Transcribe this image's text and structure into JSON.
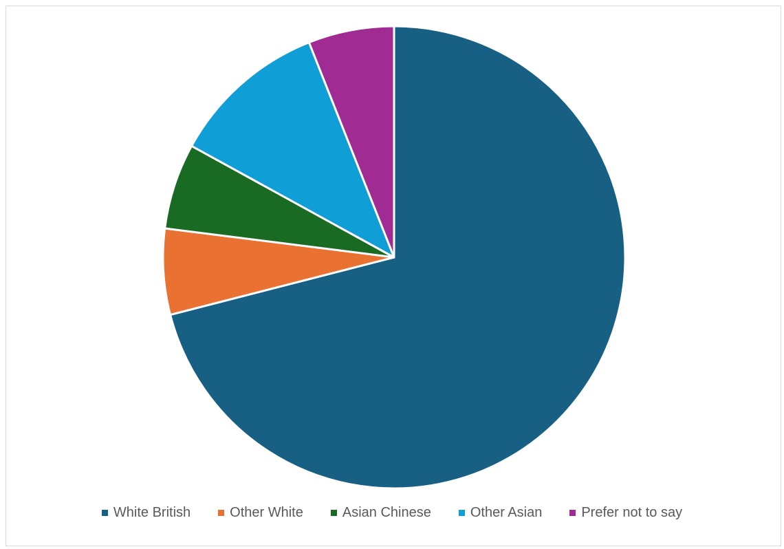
{
  "chart_data": {
    "type": "pie",
    "title": "",
    "legend_position": "bottom",
    "start_angle_deg": 0,
    "direction": "clockwise",
    "slices": [
      {
        "label": "White British",
        "value": 71,
        "color": "#176083"
      },
      {
        "label": "Other White",
        "value": 6,
        "color": "#E97132"
      },
      {
        "label": "Asian Chinese",
        "value": 6,
        "color": "#196B24"
      },
      {
        "label": "Other Asian",
        "value": 11,
        "color": "#0F9ED5"
      },
      {
        "label": "Prefer not to say",
        "value": 6,
        "color": "#A02B93"
      }
    ]
  }
}
